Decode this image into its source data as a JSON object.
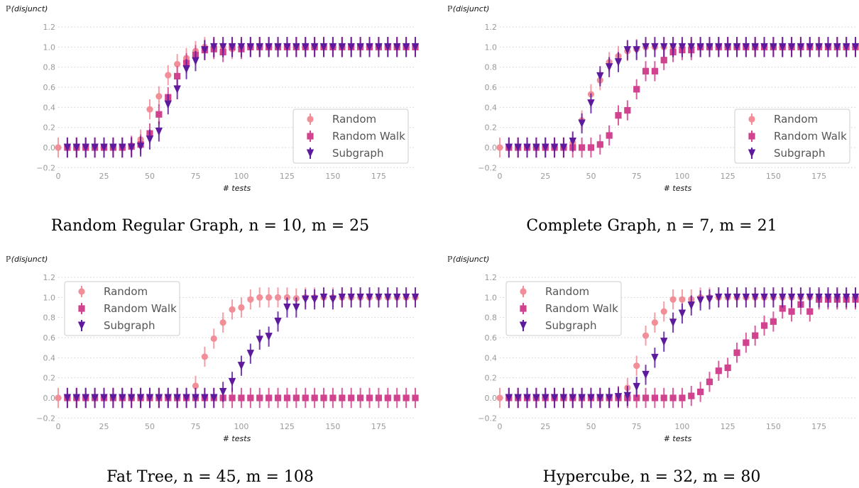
{
  "colors": {
    "random": "#f28e98",
    "random_walk": "#d1428f",
    "subgraph": "#5e1a9c",
    "grid": "#d0d0d0",
    "tick_label": "#9a9a9a"
  },
  "chart_data": [
    {
      "type": "scatter",
      "ylabel": "ℙ(disjunct)",
      "xlabel": "# tests",
      "caption": "Random Regular Graph, n = 10, m = 25",
      "xlim": [
        0,
        195
      ],
      "ylim": [
        -0.2,
        1.25
      ],
      "xticks": [
        0,
        25,
        50,
        75,
        100,
        125,
        150,
        175
      ],
      "yticks": [
        -0.2,
        0.0,
        0.2,
        0.4,
        0.6,
        0.8,
        1.0,
        1.2
      ],
      "grid": "horizontal dotted",
      "legend": "middle-right",
      "legend_entries": [
        "Random",
        "Random Walk",
        "Subgraph"
      ],
      "series": [
        {
          "name": "Random",
          "marker": "circle",
          "x": [
            0,
            5,
            10,
            15,
            20,
            25,
            30,
            35,
            40,
            45,
            50,
            55,
            60,
            65,
            70,
            75,
            80,
            85,
            90,
            95,
            100,
            105,
            110,
            115,
            120,
            125,
            130,
            135,
            140,
            145,
            150,
            155,
            160,
            165,
            170,
            175,
            180,
            185,
            190,
            195
          ],
          "y": [
            0,
            0,
            0,
            0,
            0,
            0,
            0,
            0,
            0.02,
            0.08,
            0.38,
            0.51,
            0.72,
            0.83,
            0.89,
            0.96,
            1,
            1,
            1,
            0.98,
            1,
            1,
            1,
            1,
            1,
            1,
            1,
            1,
            1,
            1,
            1,
            1,
            1,
            1,
            1,
            1,
            1,
            1,
            1,
            1
          ]
        },
        {
          "name": "Random Walk",
          "marker": "square",
          "x": [
            5,
            10,
            15,
            20,
            25,
            30,
            35,
            40,
            45,
            50,
            55,
            60,
            65,
            70,
            75,
            80,
            85,
            90,
            95,
            100,
            105,
            110,
            115,
            120,
            125,
            130,
            135,
            140,
            145,
            150,
            155,
            160,
            165,
            170,
            175,
            180,
            185,
            190,
            195
          ],
          "y": [
            0,
            0,
            0,
            0,
            0,
            0,
            0,
            0.01,
            0.03,
            0.14,
            0.33,
            0.5,
            0.71,
            0.84,
            0.92,
            0.97,
            0.98,
            0.95,
            1,
            0.98,
            1,
            1,
            1,
            1,
            1,
            1,
            1,
            1,
            1,
            1,
            1,
            1,
            1,
            1,
            1,
            1,
            1,
            1,
            1
          ]
        },
        {
          "name": "Subgraph",
          "marker": "triangle-down",
          "x": [
            5,
            10,
            15,
            20,
            25,
            30,
            35,
            40,
            45,
            50,
            55,
            60,
            65,
            70,
            75,
            80,
            85,
            90,
            95,
            100,
            105,
            110,
            115,
            120,
            125,
            130,
            135,
            140,
            145,
            150,
            155,
            160,
            165,
            170,
            175,
            180,
            185,
            190,
            195
          ],
          "y": [
            0,
            0,
            0,
            0,
            0,
            0,
            0,
            0,
            0.01,
            0.08,
            0.16,
            0.43,
            0.58,
            0.78,
            0.86,
            0.97,
            1,
            1,
            1,
            1,
            1,
            1,
            1,
            1,
            1,
            1,
            1,
            1,
            1,
            1,
            1,
            1,
            1,
            1,
            1,
            1,
            1,
            1,
            1
          ]
        }
      ]
    },
    {
      "type": "scatter",
      "ylabel": "ℙ(disjunct)",
      "xlabel": "# tests",
      "caption": "Complete Graph, n = 7, m = 21",
      "xlim": [
        0,
        195
      ],
      "ylim": [
        -0.2,
        1.25
      ],
      "xticks": [
        0,
        25,
        50,
        75,
        100,
        125,
        150,
        175
      ],
      "yticks": [
        -0.2,
        0.0,
        0.2,
        0.4,
        0.6,
        0.8,
        1.0,
        1.2
      ],
      "grid": "horizontal dotted",
      "legend": "middle-right",
      "legend_entries": [
        "Random",
        "Random Walk",
        "Subgraph"
      ],
      "series": [
        {
          "name": "Random",
          "marker": "circle",
          "x": [
            0,
            5,
            10,
            15,
            20,
            25,
            30,
            35,
            40,
            45,
            50,
            55,
            60,
            65,
            70,
            75,
            80,
            85,
            90,
            95,
            100,
            105,
            110,
            115,
            120,
            125,
            130,
            135,
            140,
            145,
            150,
            155,
            160,
            165,
            170,
            175,
            180,
            185,
            190,
            195
          ],
          "y": [
            0,
            0,
            0,
            0,
            0,
            0,
            0,
            0,
            0.05,
            0.27,
            0.53,
            0.67,
            0.85,
            0.91,
            0.96,
            0.98,
            1,
            1,
            1,
            1,
            1,
            1,
            1,
            1,
            1,
            1,
            1,
            1,
            1,
            1,
            1,
            1,
            1,
            1,
            1,
            1,
            1,
            1,
            1,
            1
          ]
        },
        {
          "name": "Random Walk",
          "marker": "square",
          "x": [
            5,
            10,
            15,
            20,
            25,
            30,
            35,
            40,
            45,
            50,
            55,
            60,
            65,
            70,
            75,
            80,
            85,
            90,
            95,
            100,
            105,
            110,
            115,
            120,
            125,
            130,
            135,
            140,
            145,
            150,
            155,
            160,
            165,
            170,
            175,
            180,
            185,
            190,
            195
          ],
          "y": [
            0,
            0,
            0,
            0,
            0,
            0,
            0,
            0,
            0,
            0,
            0.03,
            0.12,
            0.32,
            0.37,
            0.58,
            0.76,
            0.76,
            0.87,
            0.95,
            0.97,
            0.97,
            1,
            1,
            1,
            1,
            1,
            1,
            1,
            1,
            1,
            1,
            1,
            1,
            1,
            1,
            1,
            1,
            1,
            1
          ]
        },
        {
          "name": "Subgraph",
          "marker": "triangle-down",
          "x": [
            5,
            10,
            15,
            20,
            25,
            30,
            35,
            40,
            45,
            50,
            55,
            60,
            65,
            70,
            75,
            80,
            85,
            90,
            95,
            100,
            105,
            110,
            115,
            120,
            125,
            130,
            135,
            140,
            145,
            150,
            155,
            160,
            165,
            170,
            175,
            180,
            185,
            190,
            195
          ],
          "y": [
            0,
            0,
            0,
            0,
            0,
            0,
            0,
            0.06,
            0.24,
            0.44,
            0.71,
            0.8,
            0.85,
            0.97,
            0.97,
            1,
            1,
            1,
            1,
            1,
            1,
            1,
            1,
            1,
            1,
            1,
            1,
            1,
            1,
            1,
            1,
            1,
            1,
            1,
            1,
            1,
            1,
            1,
            1
          ]
        }
      ]
    },
    {
      "type": "scatter",
      "ylabel": "ℙ(disjunct)",
      "xlabel": "# tests",
      "caption": "Fat Tree, n = 45, m = 108",
      "xlim": [
        0,
        195
      ],
      "ylim": [
        -0.2,
        1.25
      ],
      "xticks": [
        0,
        25,
        50,
        75,
        100,
        125,
        150,
        175
      ],
      "yticks": [
        -0.2,
        0.0,
        0.2,
        0.4,
        0.6,
        0.8,
        1.0,
        1.2
      ],
      "grid": "horizontal dotted",
      "legend": "top-left",
      "legend_entries": [
        "Random",
        "Random Walk",
        "Subgraph"
      ],
      "series": [
        {
          "name": "Random",
          "marker": "circle",
          "x": [
            0,
            5,
            10,
            15,
            20,
            25,
            30,
            35,
            40,
            45,
            50,
            55,
            60,
            65,
            70,
            75,
            80,
            85,
            90,
            95,
            100,
            105,
            110,
            115,
            120,
            125,
            130,
            135,
            140,
            145,
            150,
            155,
            160,
            165,
            170,
            175,
            180,
            185,
            190,
            195
          ],
          "y": [
            0,
            0,
            0,
            0,
            0,
            0,
            0,
            0,
            0,
            0,
            0,
            0,
            0,
            0,
            0,
            0.12,
            0.41,
            0.59,
            0.75,
            0.88,
            0.9,
            0.98,
            1,
            1,
            1,
            1,
            0.99,
            1,
            1,
            1,
            1,
            1,
            1,
            1,
            1,
            1,
            1,
            1,
            1,
            1
          ]
        },
        {
          "name": "Random Walk",
          "marker": "square",
          "x": [
            5,
            10,
            15,
            20,
            25,
            30,
            35,
            40,
            45,
            50,
            55,
            60,
            65,
            70,
            75,
            80,
            85,
            90,
            95,
            100,
            105,
            110,
            115,
            120,
            125,
            130,
            135,
            140,
            145,
            150,
            155,
            160,
            165,
            170,
            175,
            180,
            185,
            190,
            195
          ],
          "y": [
            0,
            0,
            0,
            0,
            0,
            0,
            0,
            0,
            0,
            0,
            0,
            0,
            0,
            0,
            0,
            0,
            0,
            0,
            0,
            0,
            0,
            0,
            0,
            0,
            0,
            0,
            0,
            0,
            0,
            0,
            0,
            0,
            0,
            0,
            0,
            0,
            0,
            0,
            0
          ]
        },
        {
          "name": "Subgraph",
          "marker": "triangle-down",
          "x": [
            5,
            10,
            15,
            20,
            25,
            30,
            35,
            40,
            45,
            50,
            55,
            60,
            65,
            70,
            75,
            80,
            85,
            90,
            95,
            100,
            105,
            110,
            115,
            120,
            125,
            130,
            135,
            140,
            145,
            150,
            155,
            160,
            165,
            170,
            175,
            180,
            185,
            190,
            195
          ],
          "y": [
            0,
            0,
            0,
            0,
            0,
            0,
            0,
            0,
            0,
            0,
            0,
            0,
            0,
            0,
            0,
            0,
            0,
            0.06,
            0.16,
            0.32,
            0.44,
            0.58,
            0.61,
            0.76,
            0.9,
            0.9,
            0.98,
            0.98,
            1,
            0.98,
            1,
            1,
            1,
            1,
            1,
            1,
            1,
            1,
            1
          ]
        }
      ]
    },
    {
      "type": "scatter",
      "ylabel": "ℙ(disjunct)",
      "xlabel": "# tests",
      "caption": "Hypercube, n = 32, m = 80",
      "xlim": [
        0,
        195
      ],
      "ylim": [
        -0.2,
        1.25
      ],
      "xticks": [
        0,
        25,
        50,
        75,
        100,
        125,
        150,
        175
      ],
      "yticks": [
        -0.2,
        0.0,
        0.2,
        0.4,
        0.6,
        0.8,
        1.0,
        1.2
      ],
      "grid": "horizontal dotted",
      "legend": "top-left",
      "legend_entries": [
        "Random",
        "Random Walk",
        "Subgraph"
      ],
      "series": [
        {
          "name": "Random",
          "marker": "circle",
          "x": [
            0,
            5,
            10,
            15,
            20,
            25,
            30,
            35,
            40,
            45,
            50,
            55,
            60,
            65,
            70,
            75,
            80,
            85,
            90,
            95,
            100,
            105,
            110,
            115,
            120,
            125,
            130,
            135,
            140,
            145,
            150,
            155,
            160,
            165,
            170,
            175,
            180,
            185,
            190,
            195
          ],
          "y": [
            0,
            0,
            0,
            0,
            0,
            0,
            0,
            0,
            0,
            0,
            0,
            0,
            0,
            0.02,
            0.1,
            0.32,
            0.62,
            0.75,
            0.86,
            0.98,
            0.98,
            0.98,
            1,
            1,
            1,
            1,
            1,
            1,
            1,
            1,
            1,
            1,
            1,
            1,
            1,
            1,
            1,
            1,
            1,
            1
          ]
        },
        {
          "name": "Random Walk",
          "marker": "square",
          "x": [
            5,
            10,
            15,
            20,
            25,
            30,
            35,
            40,
            45,
            50,
            55,
            60,
            65,
            70,
            75,
            80,
            85,
            90,
            95,
            100,
            105,
            110,
            115,
            120,
            125,
            130,
            135,
            140,
            145,
            150,
            155,
            160,
            165,
            170,
            175,
            180,
            185,
            190,
            195
          ],
          "y": [
            0,
            0,
            0,
            0,
            0,
            0,
            0,
            0,
            0,
            0,
            0,
            0,
            0,
            0,
            0,
            0,
            0,
            0,
            0,
            0,
            0.02,
            0.06,
            0.16,
            0.27,
            0.3,
            0.45,
            0.55,
            0.62,
            0.72,
            0.76,
            0.89,
            0.86,
            0.93,
            0.86,
            0.98,
            0.98,
            0.98,
            0.98,
            0.98
          ]
        },
        {
          "name": "Subgraph",
          "marker": "triangle-down",
          "x": [
            5,
            10,
            15,
            20,
            25,
            30,
            35,
            40,
            45,
            50,
            55,
            60,
            65,
            70,
            75,
            80,
            85,
            90,
            95,
            100,
            105,
            110,
            115,
            120,
            125,
            130,
            135,
            140,
            145,
            150,
            155,
            160,
            165,
            170,
            175,
            180,
            185,
            190,
            195
          ],
          "y": [
            0,
            0,
            0,
            0,
            0,
            0,
            0,
            0,
            0,
            0,
            0,
            0,
            0.01,
            0.02,
            0.11,
            0.23,
            0.4,
            0.56,
            0.75,
            0.84,
            0.92,
            0.97,
            0.98,
            1,
            1,
            1,
            1,
            1,
            1,
            1,
            1,
            1,
            1,
            1,
            1,
            1,
            1,
            1,
            1
          ]
        }
      ]
    }
  ]
}
